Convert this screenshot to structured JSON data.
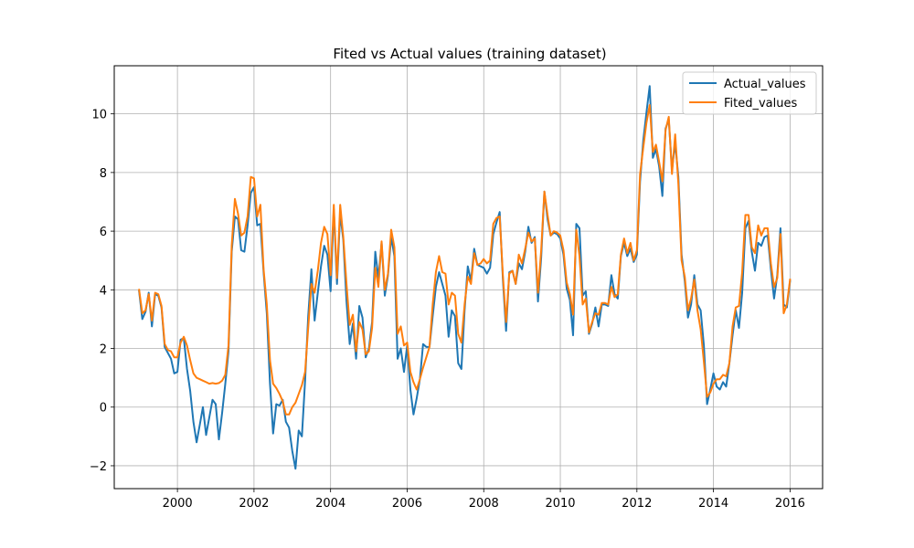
{
  "chart_data": {
    "type": "line",
    "title": "Fited vs Actual values (training dataset)",
    "xlabel": "",
    "ylabel": "",
    "xlim": [
      1998.35,
      2016.85
    ],
    "ylim": [
      -2.78,
      11.64
    ],
    "x_start": 1999.0,
    "x_step": 0.08333,
    "x_ticks": [
      2000,
      2002,
      2004,
      2006,
      2008,
      2010,
      2012,
      2014,
      2016
    ],
    "y_ticks": [
      -2,
      0,
      2,
      4,
      6,
      8,
      10
    ],
    "x_tick_labels": [
      "2000",
      "2002",
      "2004",
      "2006",
      "2008",
      "2010",
      "2012",
      "2014",
      "2016"
    ],
    "y_tick_labels": [
      "−2",
      "0",
      "2",
      "4",
      "6",
      "8",
      "10"
    ],
    "grid": true,
    "legend_position": "top-right",
    "series": [
      {
        "name": "Actual_values",
        "color": "#1f77b4",
        "values": [
          3.95,
          3.0,
          3.25,
          3.9,
          2.75,
          3.85,
          3.8,
          3.4,
          2.05,
          1.85,
          1.65,
          1.15,
          1.2,
          2.3,
          2.35,
          1.3,
          0.55,
          -0.5,
          -1.2,
          -0.6,
          0.0,
          -0.95,
          -0.35,
          0.25,
          0.1,
          -1.1,
          -0.2,
          0.8,
          1.9,
          5.3,
          6.5,
          6.4,
          5.35,
          5.3,
          6.2,
          7.3,
          7.5,
          6.2,
          6.25,
          4.6,
          3.2,
          0.8,
          -0.9,
          0.1,
          0.05,
          0.25,
          -0.5,
          -0.7,
          -1.5,
          -2.1,
          -0.8,
          -1.0,
          0.9,
          3.1,
          4.7,
          2.95,
          3.9,
          4.8,
          5.5,
          5.2,
          3.95,
          6.75,
          4.2,
          6.6,
          5.7,
          3.6,
          2.15,
          2.85,
          1.65,
          3.45,
          3.05,
          1.7,
          2.0,
          2.9,
          5.3,
          4.4,
          5.6,
          3.8,
          4.5,
          5.8,
          5.15,
          1.65,
          2.0,
          1.2,
          2.1,
          0.6,
          -0.25,
          0.3,
          0.95,
          2.15,
          2.05,
          2.05,
          3.1,
          4.1,
          4.6,
          4.2,
          3.8,
          2.4,
          3.3,
          3.1,
          1.5,
          1.3,
          3.3,
          4.8,
          4.3,
          5.4,
          4.85,
          4.8,
          4.75,
          4.55,
          4.75,
          5.9,
          6.3,
          6.65,
          4.35,
          2.6,
          4.6,
          4.65,
          4.2,
          4.9,
          4.7,
          5.3,
          6.15,
          5.6,
          5.8,
          3.6,
          5.1,
          7.35,
          6.4,
          5.85,
          5.95,
          5.9,
          5.75,
          5.2,
          4.05,
          3.65,
          2.45,
          6.25,
          6.1,
          3.8,
          3.95,
          2.5,
          2.85,
          3.4,
          2.75,
          3.5,
          3.5,
          3.45,
          4.5,
          3.85,
          3.7,
          5.15,
          5.6,
          5.15,
          5.4,
          4.95,
          5.2,
          7.7,
          9.1,
          10.05,
          10.95,
          8.5,
          8.8,
          8.2,
          7.2,
          9.5,
          9.8,
          8.1,
          9.0,
          7.85,
          5.2,
          4.3,
          3.05,
          3.5,
          4.5,
          3.5,
          3.3,
          2.1,
          0.1,
          0.6,
          1.15,
          0.7,
          0.6,
          0.85,
          0.7,
          1.5,
          2.45,
          3.3,
          2.7,
          3.9,
          6.1,
          6.35,
          5.3,
          4.65,
          5.6,
          5.5,
          5.8,
          5.85,
          4.7,
          3.7,
          4.5,
          6.1,
          3.5,
          3.4,
          4.3
        ]
      },
      {
        "name": "Fited_values",
        "color": "#ff7f0e",
        "values": [
          4.0,
          3.2,
          3.3,
          3.85,
          2.95,
          3.9,
          3.85,
          3.45,
          2.15,
          1.95,
          1.9,
          1.7,
          1.7,
          2.2,
          2.4,
          2.1,
          1.6,
          1.15,
          1.0,
          0.95,
          0.9,
          0.85,
          0.8,
          0.82,
          0.8,
          0.82,
          0.9,
          1.1,
          2.1,
          5.5,
          7.1,
          6.6,
          5.85,
          5.95,
          6.5,
          7.85,
          7.8,
          6.5,
          6.9,
          4.7,
          3.5,
          1.6,
          0.8,
          0.65,
          0.45,
          0.2,
          -0.25,
          -0.25,
          0.0,
          0.15,
          0.45,
          0.75,
          1.2,
          2.7,
          4.2,
          3.9,
          4.65,
          5.6,
          6.15,
          5.9,
          4.5,
          6.9,
          4.4,
          6.9,
          5.8,
          4.2,
          2.8,
          3.15,
          1.9,
          2.9,
          2.65,
          1.8,
          1.9,
          2.7,
          4.75,
          4.1,
          5.65,
          4.0,
          4.55,
          6.05,
          5.45,
          2.5,
          2.75,
          2.1,
          2.2,
          1.2,
          0.85,
          0.6,
          0.95,
          1.35,
          1.7,
          2.05,
          3.5,
          4.6,
          5.15,
          4.6,
          4.55,
          3.5,
          3.9,
          3.8,
          2.5,
          2.2,
          3.5,
          4.45,
          4.2,
          5.25,
          4.85,
          4.9,
          5.05,
          4.9,
          5.0,
          6.25,
          6.45,
          6.5,
          4.5,
          2.9,
          4.55,
          4.65,
          4.2,
          5.2,
          4.9,
          5.4,
          5.95,
          5.65,
          5.75,
          3.9,
          5.35,
          7.35,
          6.55,
          5.85,
          6.0,
          5.95,
          5.85,
          5.35,
          4.25,
          3.85,
          3.15,
          6.05,
          5.15,
          3.5,
          3.7,
          2.55,
          2.9,
          3.2,
          3.15,
          3.55,
          3.55,
          3.5,
          4.1,
          3.75,
          3.85,
          5.2,
          5.75,
          5.25,
          5.6,
          5.0,
          5.35,
          7.95,
          8.85,
          9.7,
          10.3,
          8.7,
          8.95,
          8.35,
          7.7,
          9.45,
          9.9,
          7.95,
          9.3,
          7.6,
          5.0,
          4.45,
          3.3,
          3.7,
          4.35,
          3.3,
          2.65,
          1.55,
          0.35,
          0.5,
          0.8,
          0.95,
          0.95,
          1.1,
          1.05,
          1.5,
          2.75,
          3.4,
          3.45,
          4.6,
          6.55,
          6.55,
          5.45,
          5.25,
          6.2,
          5.85,
          6.1,
          6.1,
          4.9,
          4.1,
          4.4,
          5.9,
          3.2,
          3.5,
          4.35
        ]
      }
    ]
  }
}
